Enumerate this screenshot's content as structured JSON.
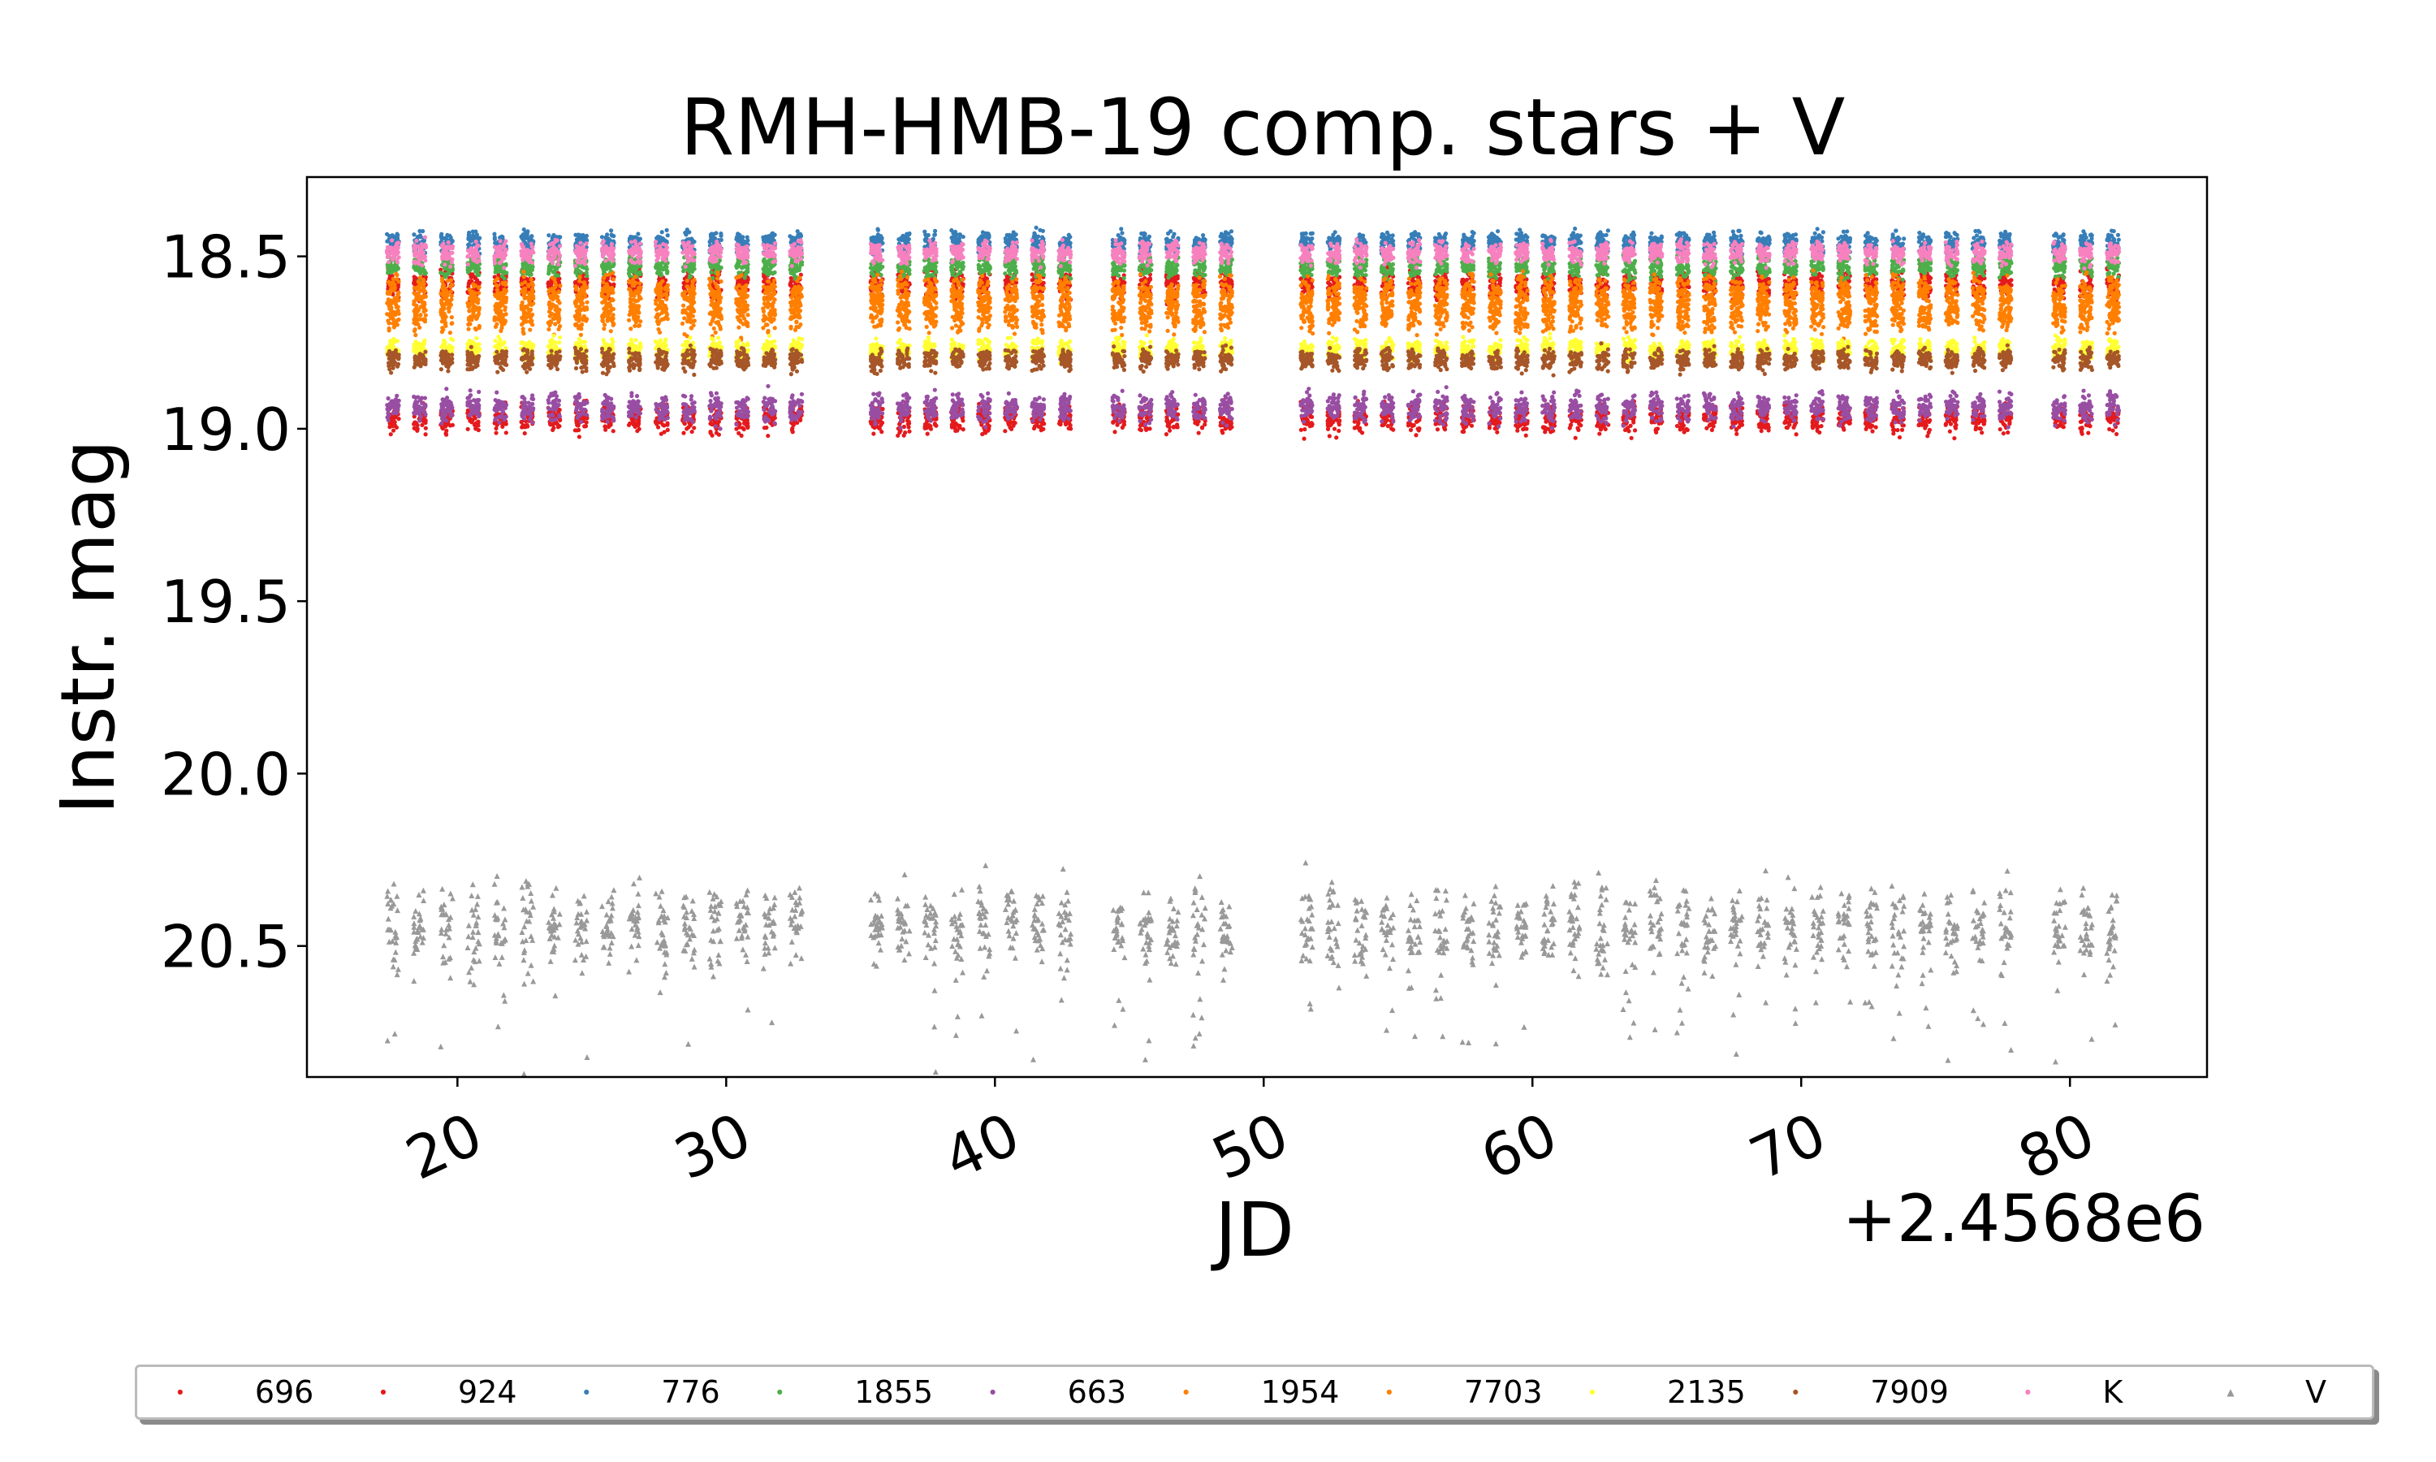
{
  "chart_data": {
    "type": "scatter",
    "title": "RMH-HMB-19 comp. stars + V",
    "xlabel": "JD",
    "ylabel": "Instr. mag",
    "x_offset_label": "+2.4568e6",
    "xlim": [
      14.4,
      85.1
    ],
    "ylim": [
      20.88,
      18.27
    ],
    "y_inverted": true,
    "xticks": [
      20,
      30,
      40,
      50,
      60,
      70,
      80
    ],
    "yticks": [
      18.5,
      19.0,
      19.5,
      20.0,
      20.5
    ],
    "ytick_labels": [
      "18.5",
      "19.0",
      "19.5",
      "20.0",
      "20.5"
    ],
    "grid": false,
    "observation_nights": [
      17.6,
      18.6,
      19.6,
      20.6,
      21.6,
      22.6,
      23.6,
      24.6,
      25.6,
      26.6,
      27.6,
      28.6,
      29.6,
      30.6,
      31.6,
      32.6,
      35.6,
      36.6,
      37.6,
      38.6,
      39.6,
      40.6,
      41.6,
      42.6,
      44.6,
      45.6,
      46.6,
      47.6,
      48.6,
      51.6,
      52.6,
      53.6,
      54.6,
      55.6,
      56.6,
      57.6,
      58.6,
      59.6,
      60.6,
      61.6,
      62.6,
      63.6,
      64.6,
      65.6,
      66.6,
      67.6,
      68.6,
      69.6,
      70.6,
      71.6,
      72.6,
      73.6,
      74.6,
      75.6,
      76.6,
      77.6,
      79.6,
      80.6,
      81.6
    ],
    "night_width_days": 0.45,
    "series": [
      {
        "name": "696",
        "color": "#e41a1c",
        "marker": "point",
        "mean_mag": 18.97,
        "scatter": 0.02
      },
      {
        "name": "924",
        "color": "#e41a1c",
        "marker": "point",
        "mean_mag": 18.58,
        "scatter": 0.02
      },
      {
        "name": "776",
        "color": "#377eb8",
        "marker": "point",
        "mean_mag": 18.46,
        "scatter": 0.015
      },
      {
        "name": "1855",
        "color": "#4daf4a",
        "marker": "point",
        "mean_mag": 18.53,
        "scatter": 0.015
      },
      {
        "name": "663",
        "color": "#984ea3",
        "marker": "point",
        "mean_mag": 18.94,
        "scatter": 0.02
      },
      {
        "name": "1954",
        "color": "#ff7f00",
        "marker": "point",
        "mean_mag": 18.61,
        "scatter": 0.025
      },
      {
        "name": "7703",
        "color": "#ff7f00",
        "marker": "point",
        "mean_mag": 18.67,
        "scatter": 0.025
      },
      {
        "name": "2135",
        "color": "#ffff33",
        "marker": "point",
        "mean_mag": 18.77,
        "scatter": 0.015
      },
      {
        "name": "7909",
        "color": "#a65628",
        "marker": "point",
        "mean_mag": 18.8,
        "scatter": 0.015
      },
      {
        "name": "K",
        "color": "#f781bf",
        "marker": "point",
        "mean_mag": 18.49,
        "scatter": 0.015
      },
      {
        "name": "V",
        "color": "#999999",
        "marker": "triangle",
        "mean_mag": 20.45,
        "scatter": 0.06
      }
    ]
  }
}
